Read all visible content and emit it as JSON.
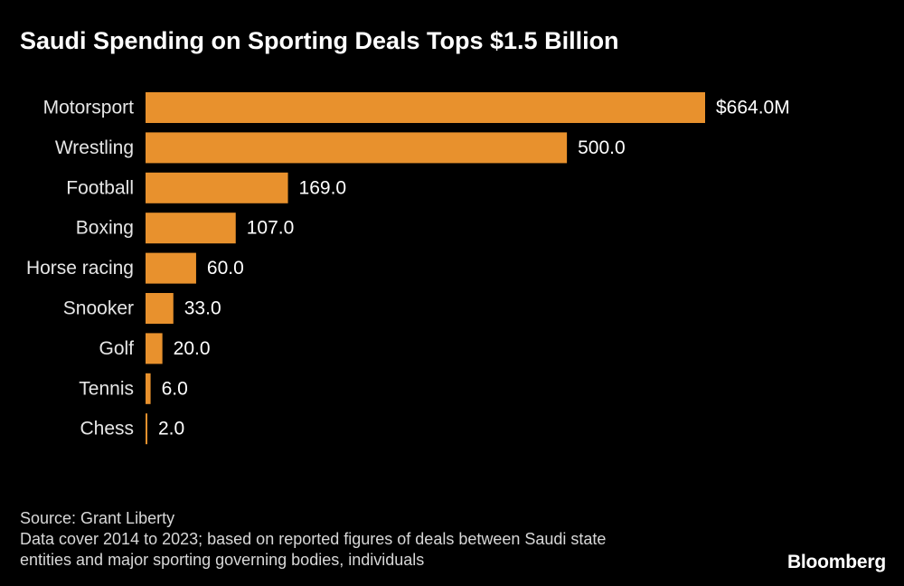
{
  "title": "Saudi Spending on Sporting Deals Tops $1.5 Billion",
  "chart_data": {
    "type": "bar",
    "orientation": "horizontal",
    "title": "Saudi Spending on Sporting Deals Tops $1.5 Billion",
    "categories": [
      "Motorsport",
      "Wrestling",
      "Football",
      "Boxing",
      "Horse racing",
      "Snooker",
      "Golf",
      "Tennis",
      "Chess"
    ],
    "values": [
      664.0,
      500.0,
      169.0,
      107.0,
      60.0,
      33.0,
      20.0,
      6.0,
      2.0
    ],
    "value_labels": [
      "$664.0M",
      "500.0",
      "169.0",
      "107.0",
      "60.0",
      "33.0",
      "20.0",
      "6.0",
      "2.0"
    ],
    "unit": "millions of US dollars",
    "xlabel": "",
    "ylabel": "",
    "xlim": [
      0,
      664
    ],
    "grid": false,
    "bar_color": "#E8912D"
  },
  "footer": {
    "source": "Source: Grant Liberty",
    "note_line1": "Data cover 2014 to 2023; based on reported figures of deals between Saudi state",
    "note_line2": "entities and major sporting governing bodies, individuals"
  },
  "brand": "Bloomberg"
}
